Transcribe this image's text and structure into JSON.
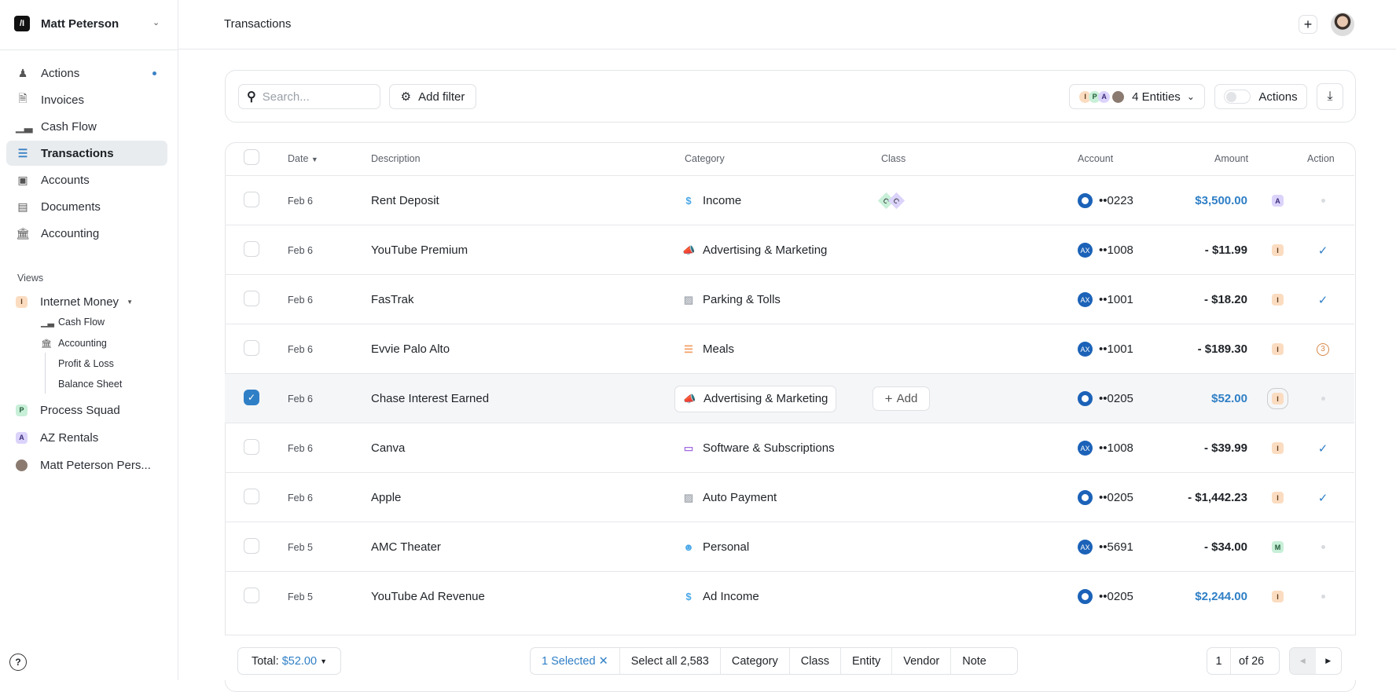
{
  "sidebar": {
    "user": "Matt Peterson",
    "items": [
      {
        "label": "Actions",
        "icon": "actions-icon",
        "dot": true
      },
      {
        "label": "Invoices",
        "icon": "invoice-icon"
      },
      {
        "label": "Cash Flow",
        "icon": "bar-chart-icon"
      },
      {
        "label": "Transactions",
        "icon": "list-icon",
        "active": true
      },
      {
        "label": "Accounts",
        "icon": "wallet-icon"
      },
      {
        "label": "Documents",
        "icon": "document-icon"
      },
      {
        "label": "Accounting",
        "icon": "bank-icon"
      }
    ],
    "views_label": "Views",
    "views": [
      {
        "label": "Internet Money",
        "badge": "I"
      },
      {
        "label": "Process Squad",
        "badge": "P"
      },
      {
        "label": "AZ Rentals",
        "badge": "A"
      },
      {
        "label": "Matt Peterson Pers..."
      }
    ],
    "sub_items": [
      "Cash Flow",
      "Accounting",
      "Profit & Loss",
      "Balance Sheet"
    ]
  },
  "header": {
    "title": "Transactions"
  },
  "filters": {
    "search_placeholder": "Search...",
    "add_filter": "Add filter",
    "entities": "4 Entities",
    "entity_badges": [
      "I",
      "P",
      "A"
    ],
    "actions_toggle": "Actions",
    "actions_on": false
  },
  "table": {
    "columns": {
      "date": "Date",
      "description": "Description",
      "category": "Category",
      "class": "Class",
      "account": "Account",
      "amount": "Amount",
      "action": "Action"
    },
    "rows": [
      {
        "date": "Feb 6",
        "description": "Rent Deposit",
        "category": "Income",
        "cat_icon": "dollar-icon",
        "cat_color": "#4aa8e8",
        "classes": [
          "C",
          "C"
        ],
        "account": "••0223",
        "bank": "chase",
        "amount": "$3,500.00",
        "positive": true,
        "entity": "A",
        "action": "dot"
      },
      {
        "date": "Feb 6",
        "description": "YouTube Premium",
        "category": "Advertising & Marketing",
        "cat_icon": "megaphone-icon",
        "cat_color": "#f06b8a",
        "account": "••1008",
        "bank": "amex",
        "amount": "- $11.99",
        "entity": "I",
        "action": "check"
      },
      {
        "date": "Feb 6",
        "description": "FasTrak",
        "category": "Parking & Tolls",
        "cat_icon": "car-icon",
        "cat_color": "#a8adb5",
        "account": "••1001",
        "bank": "amex",
        "amount": "- $18.20",
        "entity": "I",
        "action": "check"
      },
      {
        "date": "Feb 6",
        "description": "Evvie Palo Alto",
        "category": "Meals",
        "cat_icon": "burger-icon",
        "cat_color": "#f2a068",
        "account": "••1001",
        "bank": "amex",
        "amount": "- $189.30",
        "entity": "I",
        "action": "3"
      },
      {
        "date": "Feb 6",
        "description": "Chase Interest Earned",
        "category": "Advertising & Marketing",
        "cat_icon": "megaphone-icon",
        "cat_color": "#f06b8a",
        "add_class": "Add",
        "account": "••0205",
        "bank": "chase",
        "amount": "$52.00",
        "positive": true,
        "entity": "I",
        "action": "dot",
        "selected": true
      },
      {
        "date": "Feb 6",
        "description": "Canva",
        "category": "Software & Subscriptions",
        "cat_icon": "laptop-icon",
        "cat_color": "#a06ae0",
        "account": "••1008",
        "bank": "amex",
        "amount": "- $39.99",
        "entity": "I",
        "action": "check"
      },
      {
        "date": "Feb 6",
        "description": "Apple",
        "category": "Auto Payment",
        "cat_icon": "car-icon",
        "cat_color": "#a8adb5",
        "account": "••0205",
        "bank": "chase",
        "amount": "- $1,442.23",
        "entity": "I",
        "action": "check"
      },
      {
        "date": "Feb 5",
        "description": "AMC Theater",
        "category": "Personal",
        "cat_icon": "person-icon",
        "cat_color": "#4aa8e8",
        "account": "••5691",
        "bank": "amex",
        "amount": "- $34.00",
        "entity": "M",
        "action": "dot"
      },
      {
        "date": "Feb 5",
        "description": "YouTube Ad Revenue",
        "category": "Ad Income",
        "cat_icon": "dollar-icon",
        "cat_color": "#4aa8e8",
        "account": "••0205",
        "bank": "chase",
        "amount": "$2,244.00",
        "positive": true,
        "entity": "I",
        "action": "dot"
      }
    ]
  },
  "footer": {
    "total_label": "Total:",
    "total_value": "$52.00",
    "selected": "1 Selected",
    "select_all": "Select all 2,583",
    "bulk": [
      "Category",
      "Class",
      "Entity",
      "Vendor",
      "Note"
    ],
    "page": "1",
    "of_pages": "of 26"
  },
  "colors": {
    "accent": "#2f7fc6",
    "chase": "#1b62b8",
    "amex": "#1b72d0"
  }
}
